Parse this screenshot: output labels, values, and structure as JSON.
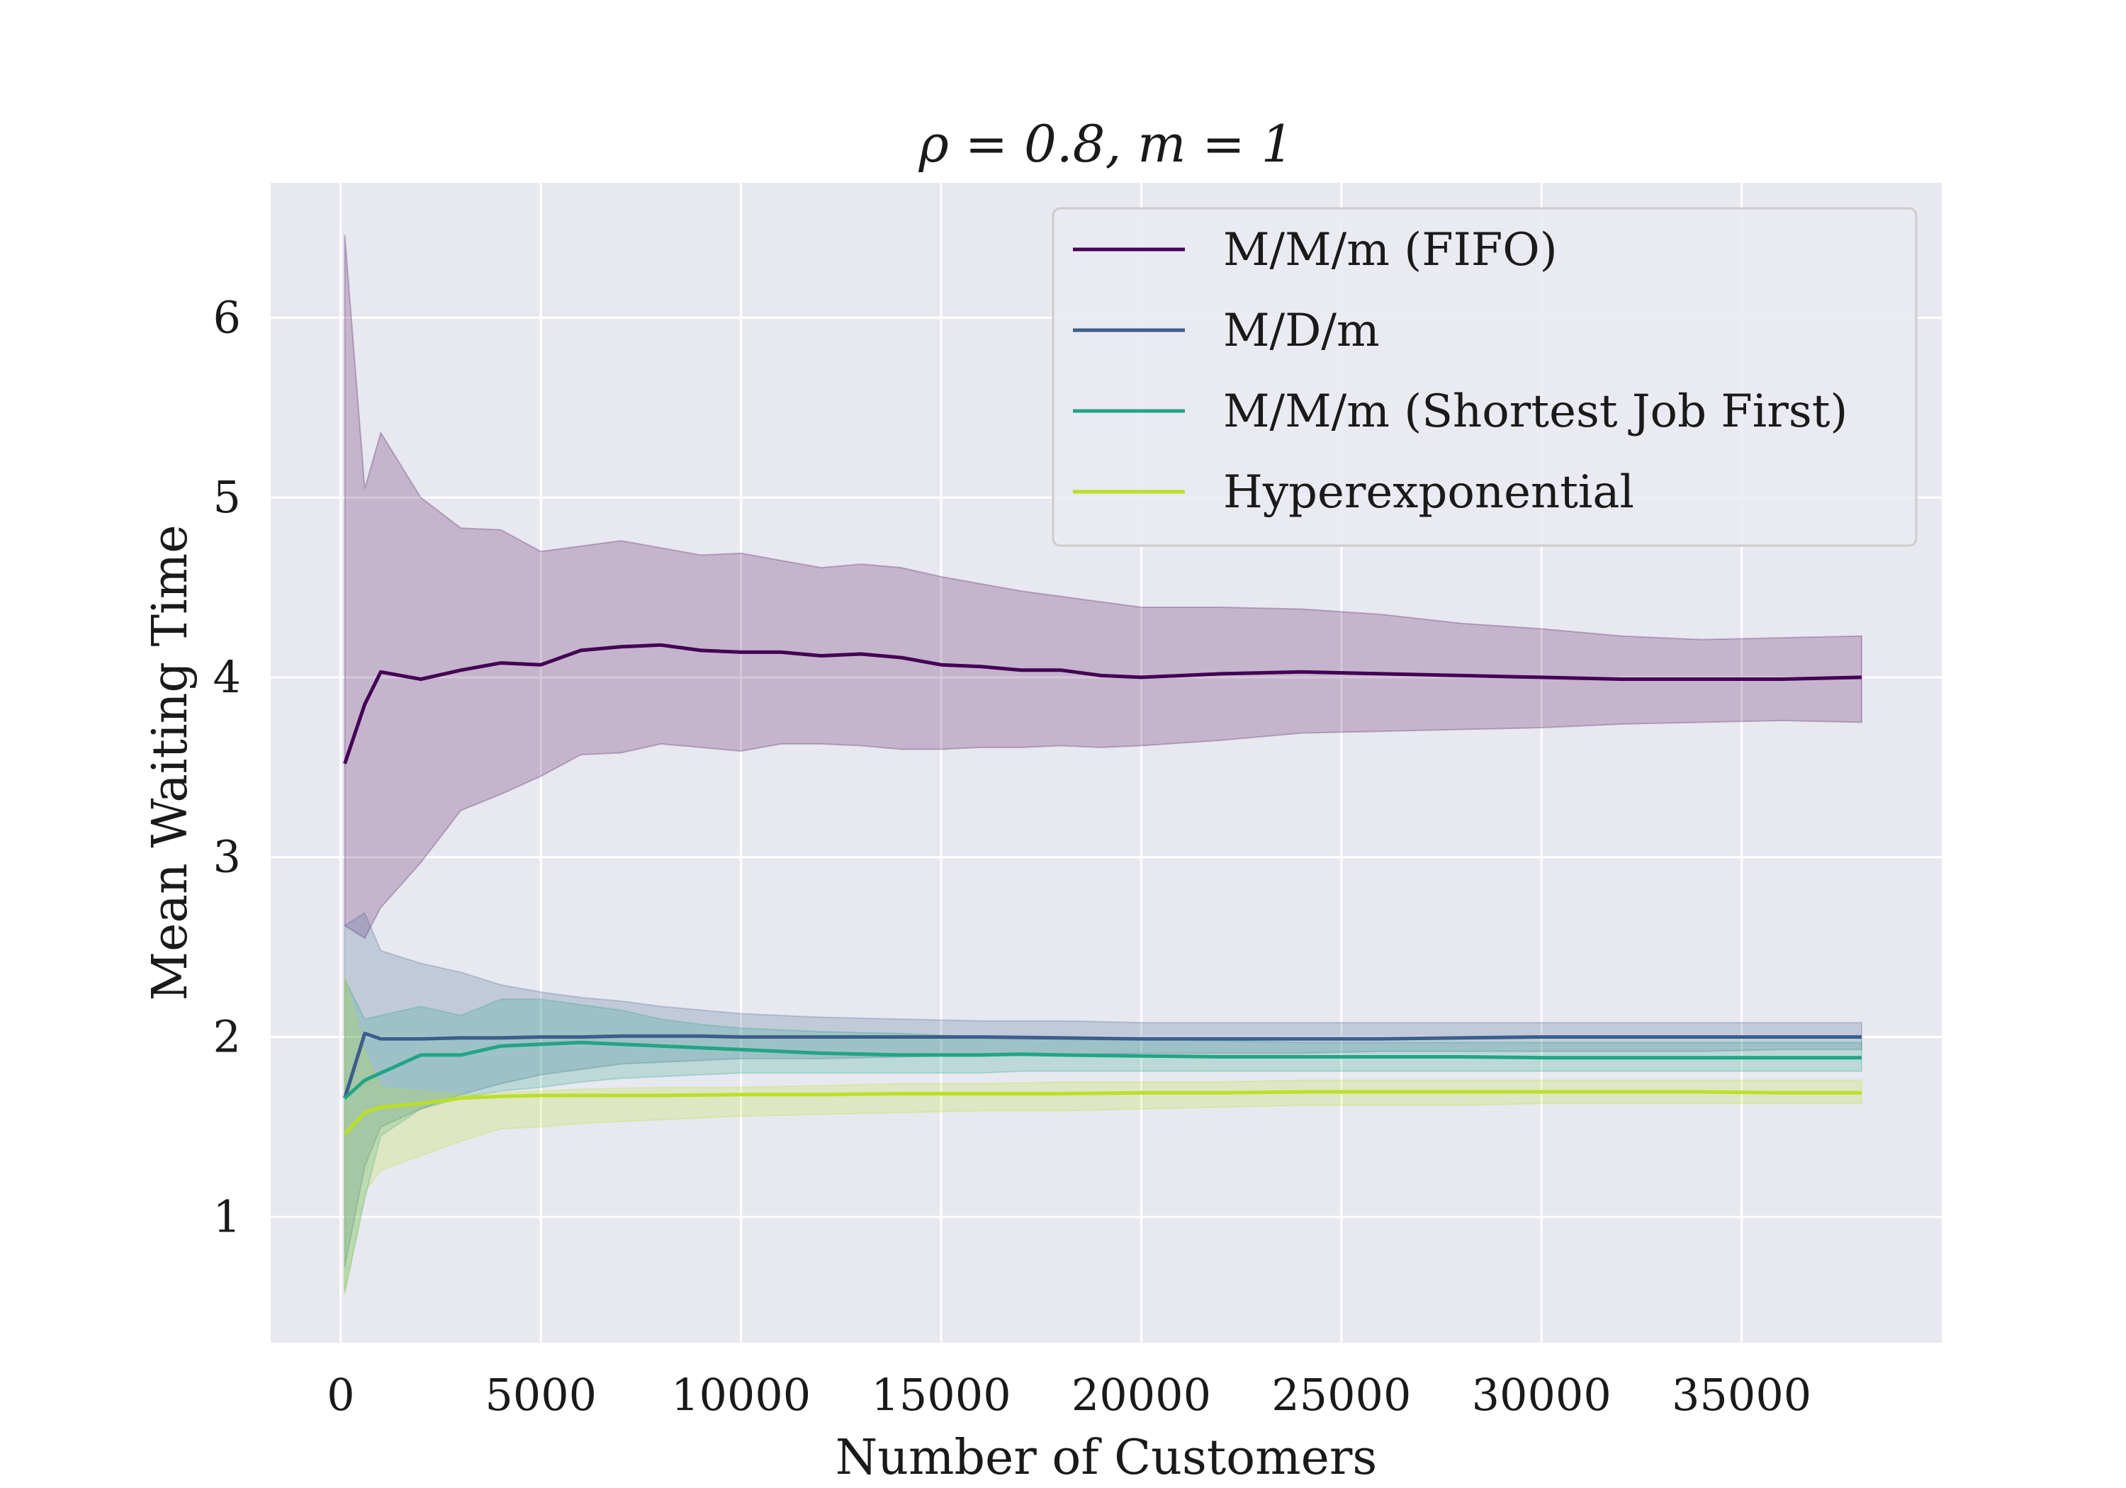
{
  "chart_data": {
    "type": "line",
    "title": "ρ = 0.8, m = 1",
    "xlabel": "Number of Customers",
    "ylabel": "Mean Waiting Time",
    "xlim": [
      -1750,
      40000
    ],
    "ylim": [
      0.3,
      6.75
    ],
    "xticks": [
      0,
      5000,
      10000,
      15000,
      20000,
      25000,
      30000,
      35000
    ],
    "xtick_labels": [
      "0",
      "5000",
      "10000",
      "15000",
      "20000",
      "25000",
      "30000",
      "35000"
    ],
    "yticks": [
      1,
      2,
      3,
      4,
      5,
      6
    ],
    "ytick_labels": [
      "1",
      "2",
      "3",
      "4",
      "5",
      "6"
    ],
    "grid": true,
    "background": "#e8e8f0",
    "legend_position": "upper-right",
    "series": [
      {
        "name": "M/M/m (FIFO)",
        "color": "#440154",
        "x": [
          100,
          600,
          1000,
          2000,
          3000,
          4000,
          5000,
          6000,
          7000,
          8000,
          9000,
          10000,
          11000,
          12000,
          13000,
          14000,
          15000,
          16000,
          17000,
          18000,
          19000,
          20000,
          22000,
          24000,
          26000,
          28000,
          30000,
          32000,
          34000,
          36000,
          38000
        ],
        "y": [
          3.52,
          3.85,
          4.03,
          3.99,
          4.04,
          4.08,
          4.07,
          4.15,
          4.17,
          4.18,
          4.15,
          4.14,
          4.14,
          4.12,
          4.13,
          4.11,
          4.07,
          4.06,
          4.04,
          4.04,
          4.01,
          4.0,
          4.02,
          4.03,
          4.02,
          4.01,
          4.0,
          3.99,
          3.99,
          3.99,
          4.0
        ],
        "lower": [
          2.62,
          2.55,
          2.72,
          2.97,
          3.26,
          3.35,
          3.45,
          3.57,
          3.58,
          3.63,
          3.61,
          3.59,
          3.63,
          3.63,
          3.62,
          3.6,
          3.6,
          3.61,
          3.61,
          3.62,
          3.61,
          3.62,
          3.65,
          3.69,
          3.7,
          3.71,
          3.72,
          3.74,
          3.75,
          3.76,
          3.75
        ],
        "upper": [
          6.46,
          5.05,
          5.36,
          5.0,
          4.83,
          4.82,
          4.7,
          4.73,
          4.76,
          4.72,
          4.68,
          4.69,
          4.65,
          4.61,
          4.63,
          4.61,
          4.56,
          4.52,
          4.48,
          4.45,
          4.42,
          4.39,
          4.39,
          4.38,
          4.35,
          4.3,
          4.27,
          4.23,
          4.21,
          4.22,
          4.23
        ]
      },
      {
        "name": "M/D/m",
        "color": "#3b5e8c",
        "x": [
          100,
          600,
          1000,
          2000,
          3000,
          4000,
          5000,
          6000,
          7000,
          8000,
          9000,
          10000,
          12000,
          14000,
          16000,
          18000,
          20000,
          22000,
          24000,
          26000,
          28000,
          30000,
          32000,
          34000,
          36000,
          38000
        ],
        "y": [
          1.66,
          2.02,
          1.99,
          1.99,
          1.995,
          1.995,
          2.0,
          2.0,
          2.005,
          2.005,
          2.005,
          2.0,
          2.0,
          2.0,
          2.0,
          1.995,
          1.99,
          1.99,
          1.99,
          1.99,
          1.995,
          2.0,
          2.0,
          2.0,
          2.0,
          2.0
        ],
        "lower": [
          0.72,
          1.28,
          1.5,
          1.6,
          1.68,
          1.74,
          1.79,
          1.82,
          1.85,
          1.86,
          1.87,
          1.88,
          1.88,
          1.89,
          1.9,
          1.9,
          1.91,
          1.91,
          1.91,
          1.92,
          1.92,
          1.92,
          1.92,
          1.92,
          1.93,
          1.93
        ],
        "upper": [
          2.62,
          2.69,
          2.48,
          2.41,
          2.36,
          2.29,
          2.25,
          2.22,
          2.2,
          2.17,
          2.15,
          2.13,
          2.11,
          2.1,
          2.09,
          2.09,
          2.08,
          2.08,
          2.08,
          2.08,
          2.08,
          2.08,
          2.08,
          2.08,
          2.08,
          2.08
        ]
      },
      {
        "name": "M/M/m (Shortest Job First)",
        "color": "#21a585",
        "x": [
          100,
          600,
          1000,
          2000,
          3000,
          4000,
          5000,
          6000,
          7000,
          8000,
          9000,
          10000,
          12000,
          14000,
          16000,
          17000,
          18000,
          20000,
          22000,
          24000,
          26000,
          28000,
          30000,
          32000,
          34000,
          36000,
          38000
        ],
        "y": [
          1.66,
          1.76,
          1.8,
          1.9,
          1.9,
          1.95,
          1.96,
          1.97,
          1.96,
          1.95,
          1.94,
          1.93,
          1.91,
          1.9,
          1.9,
          1.905,
          1.9,
          1.895,
          1.89,
          1.89,
          1.89,
          1.89,
          1.885,
          1.885,
          1.885,
          1.885,
          1.885
        ],
        "lower": [
          0.58,
          1.1,
          1.45,
          1.6,
          1.66,
          1.7,
          1.72,
          1.75,
          1.77,
          1.78,
          1.79,
          1.8,
          1.8,
          1.8,
          1.8,
          1.81,
          1.81,
          1.81,
          1.81,
          1.81,
          1.81,
          1.81,
          1.81,
          1.81,
          1.81,
          1.81,
          1.81
        ],
        "upper": [
          2.32,
          2.1,
          2.12,
          2.17,
          2.12,
          2.21,
          2.21,
          2.18,
          2.15,
          2.1,
          2.07,
          2.05,
          2.03,
          2.02,
          2.0,
          2.0,
          1.99,
          1.99,
          1.98,
          1.97,
          1.97,
          1.97,
          1.97,
          1.97,
          1.97,
          1.97,
          1.97
        ]
      },
      {
        "name": "Hyperexponential",
        "color": "#bcdf27",
        "x": [
          100,
          600,
          1000,
          2000,
          3000,
          4000,
          5000,
          6000,
          8000,
          10000,
          12000,
          14000,
          16000,
          18000,
          20000,
          22000,
          24000,
          26000,
          28000,
          30000,
          32000,
          34000,
          36000,
          38000
        ],
        "y": [
          1.46,
          1.58,
          1.61,
          1.63,
          1.66,
          1.67,
          1.675,
          1.675,
          1.675,
          1.68,
          1.68,
          1.685,
          1.685,
          1.685,
          1.69,
          1.69,
          1.695,
          1.695,
          1.695,
          1.695,
          1.695,
          1.695,
          1.69,
          1.69
        ],
        "lower": [
          0.57,
          1.14,
          1.26,
          1.34,
          1.42,
          1.49,
          1.5,
          1.52,
          1.54,
          1.56,
          1.57,
          1.58,
          1.59,
          1.59,
          1.6,
          1.61,
          1.62,
          1.62,
          1.62,
          1.63,
          1.63,
          1.63,
          1.63,
          1.63
        ],
        "upper": [
          2.34,
          1.92,
          1.72,
          1.7,
          1.68,
          1.69,
          1.7,
          1.71,
          1.72,
          1.72,
          1.73,
          1.74,
          1.74,
          1.75,
          1.75,
          1.75,
          1.76,
          1.76,
          1.76,
          1.76,
          1.76,
          1.76,
          1.76,
          1.76
        ]
      }
    ]
  }
}
